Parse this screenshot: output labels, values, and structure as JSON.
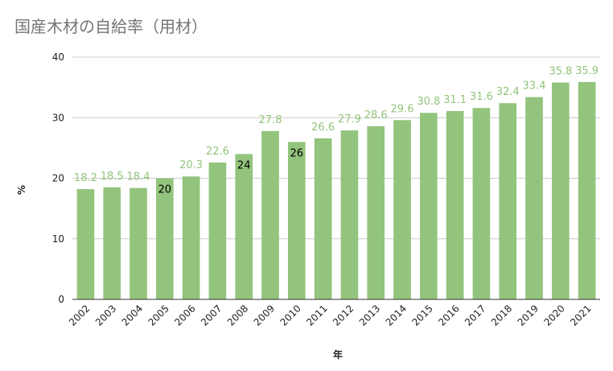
{
  "colors": {
    "bar": "#93c47d",
    "label_outside": "#93c47d",
    "label_inside": "#000000",
    "grid": "#cccccc",
    "axis": "#333333",
    "title": "#757575"
  },
  "chart_data": {
    "type": "bar",
    "title": "国産木材の自給率（用材）",
    "xlabel": "年",
    "ylabel": "%",
    "ylim": [
      0,
      40
    ],
    "yticks": [
      0,
      10,
      20,
      30,
      40
    ],
    "grid": true,
    "legend": "none",
    "categories": [
      "2002",
      "2003",
      "2004",
      "2005",
      "2006",
      "2007",
      "2008",
      "2009",
      "2010",
      "2011",
      "2012",
      "2013",
      "2014",
      "2015",
      "2016",
      "2017",
      "2018",
      "2019",
      "2020",
      "2021"
    ],
    "values": [
      18.2,
      18.5,
      18.4,
      20,
      20.3,
      22.6,
      24,
      27.8,
      26,
      26.6,
      27.9,
      28.6,
      29.6,
      30.8,
      31.1,
      31.6,
      32.4,
      33.4,
      35.8,
      35.9
    ],
    "data_labels": [
      "18.2",
      "18.5",
      "18.4",
      "20",
      "20.3",
      "22.6",
      "24",
      "27.8",
      "26",
      "26.6",
      "27.9",
      "28.6",
      "29.6",
      "30.8",
      "31.1",
      "31.6",
      "32.4",
      "33.4",
      "35.8",
      "35.9"
    ],
    "label_inside": [
      false,
      false,
      false,
      true,
      false,
      false,
      true,
      false,
      true,
      false,
      false,
      false,
      false,
      false,
      false,
      false,
      false,
      false,
      false,
      false
    ]
  }
}
